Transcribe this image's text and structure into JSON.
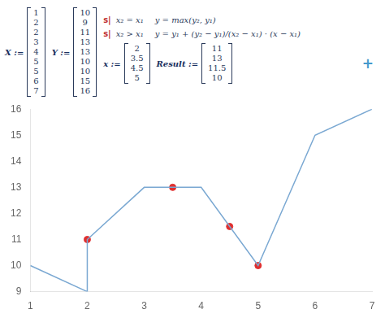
{
  "chart_data": {
    "type": "line",
    "annotations": [
      "X :=",
      "Y :=",
      "s|",
      "x₂ = x₁",
      "y = max(y₂, y₁)",
      "s|",
      "x₂ > x₁",
      "y = y₁ + (y₂ − y₁)/(x₂ − x₁) · (x − x₁)",
      "x :=",
      "Result :=",
      "+"
    ],
    "series": [
      {
        "type": "line",
        "color": "#7aa8d2",
        "x": [
          1,
          2,
          2,
          3,
          4,
          5,
          5,
          6,
          7
        ],
        "values": [
          10,
          9,
          11,
          13,
          13,
          10,
          10,
          15,
          16
        ]
      },
      {
        "type": "scatter",
        "color": "#e03030",
        "x": [
          2,
          3.5,
          4.5,
          5
        ],
        "values": [
          11,
          13,
          11.5,
          10
        ]
      }
    ],
    "xlim": [
      1,
      7
    ],
    "ylim": [
      9,
      16
    ],
    "xticks": [
      1,
      2,
      3,
      4,
      5,
      6,
      7
    ],
    "yticks": [
      9,
      10,
      11,
      12,
      13,
      14,
      15,
      16
    ],
    "grid": false
  }
}
